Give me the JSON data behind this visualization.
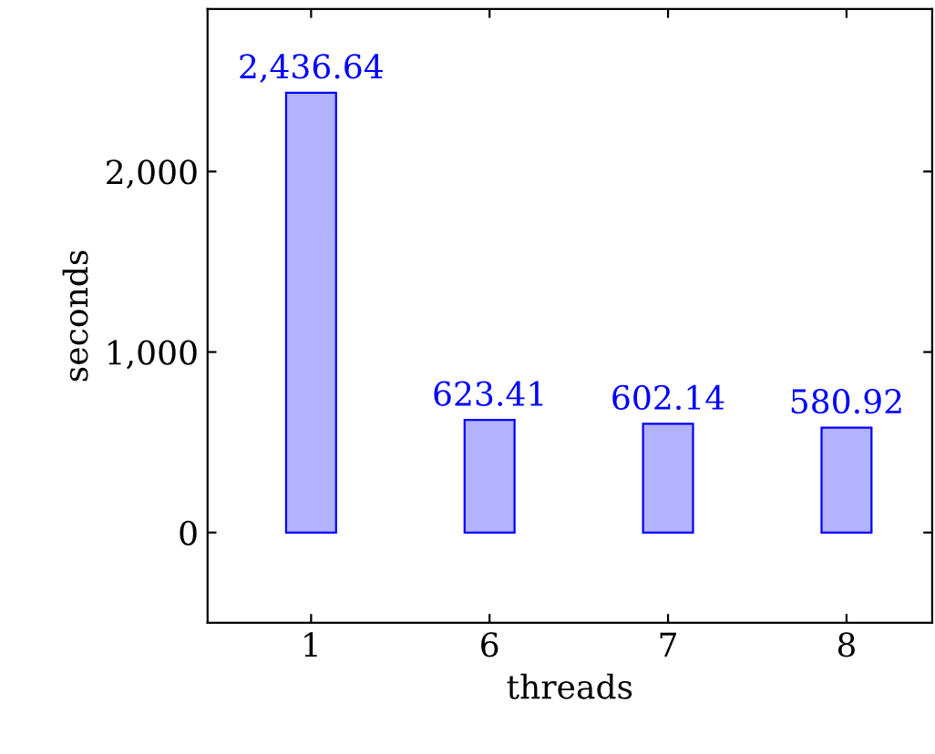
{
  "chart_data": {
    "type": "bar",
    "xlabel": "threads",
    "ylabel": "seconds",
    "categories": [
      "1",
      "6",
      "7",
      "8"
    ],
    "series": [
      {
        "color": "#0000ff",
        "values": [
          2436.64,
          623.41,
          602.14,
          580.92
        ],
        "value_labels": [
          "2,436.64",
          "623.41",
          "602.14",
          "580.92"
        ]
      }
    ],
    "ylim": [
      -500,
      2900
    ],
    "yticks": [
      0,
      {
        "value": 1000,
        "label": "1,000"
      },
      {
        "value": 2000,
        "label": "2,000"
      }
    ],
    "tick_labels": true
  }
}
